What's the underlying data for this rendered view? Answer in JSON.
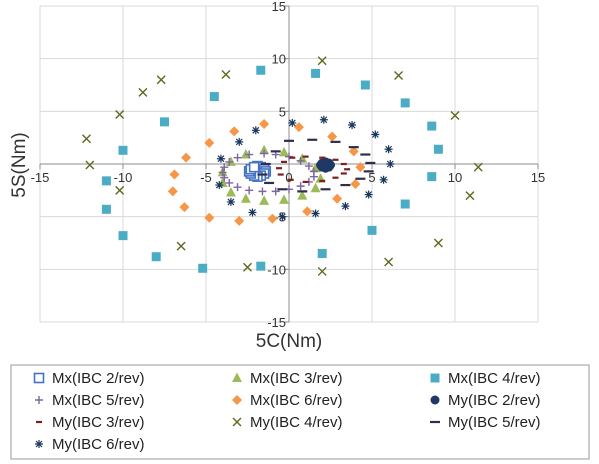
{
  "chart_data": {
    "type": "scatter",
    "title": "",
    "xlabel": "5C(Nm)",
    "ylabel": "5S(Nm)",
    "xlim": [
      -15,
      15
    ],
    "ylim": [
      -15,
      15
    ],
    "xticks": [
      -15,
      -10,
      -5,
      0,
      5,
      10,
      15
    ],
    "yticks": [
      -15,
      -10,
      -5,
      0,
      5,
      10,
      15
    ],
    "xtick_labels": [
      "-15",
      "-10",
      "-5",
      "0",
      "5",
      "10",
      "15"
    ],
    "ytick_labels": [
      "-15",
      "-10",
      "-5",
      "0",
      "5",
      "10",
      "15"
    ],
    "grid": true,
    "legend_position": "bottom",
    "series": [
      {
        "name": "Mx(IBC 2/rev)",
        "marker": "open-square",
        "color": "#4472C4",
        "x": [
          -1.9,
          -1.7,
          -1.5,
          -1.4,
          -1.5,
          -1.7,
          -1.9,
          -2.1,
          -2.3,
          -2.4,
          -2.3,
          -2.1
        ],
        "y": [
          -0.2,
          -0.3,
          -0.5,
          -0.7,
          -0.9,
          -1.1,
          -1.2,
          -1.1,
          -0.9,
          -0.7,
          -0.5,
          -0.3
        ]
      },
      {
        "name": "Mx(IBC 3/rev)",
        "marker": "triangle",
        "color": "#9BBB59",
        "x": [
          -1.5,
          -0.3,
          0.8,
          1.6,
          1.9,
          1.6,
          0.8,
          -0.3,
          -1.5,
          -2.6,
          -3.5,
          -4.0,
          -4.0,
          -3.5,
          -2.6
        ],
        "y": [
          1.3,
          1.1,
          0.5,
          -0.4,
          -1.4,
          -2.3,
          -3.0,
          -3.4,
          -3.5,
          -3.3,
          -2.7,
          -1.8,
          -0.8,
          0.2,
          0.9
        ]
      },
      {
        "name": "Mx(IBC 4/rev)",
        "marker": "square",
        "color": "#4BACC6",
        "x": [
          -1.7,
          1.6,
          4.6,
          7.0,
          8.6,
          9.0,
          8.6,
          7.0,
          5.0,
          2.0,
          -1.7,
          -5.2,
          -8.0,
          -10.0,
          -11.0,
          -11.0,
          -10.0,
          -7.5,
          -4.5
        ],
        "y": [
          8.9,
          8.6,
          7.5,
          5.8,
          3.6,
          1.4,
          -1.2,
          -3.8,
          -6.3,
          -8.5,
          -9.7,
          -9.9,
          -8.8,
          -6.8,
          -4.3,
          -1.6,
          1.3,
          4.0,
          6.4
        ]
      },
      {
        "name": "Mx(IBC 5/rev)",
        "marker": "plus",
        "color": "#8064A2",
        "x": [
          -1.5,
          -0.8,
          0.0,
          0.7,
          1.2,
          1.5,
          1.5,
          1.2,
          0.7,
          0.0,
          -0.8,
          -1.6,
          -2.4,
          -3.1,
          -3.6,
          -3.9,
          -4.0,
          -3.9,
          -3.6,
          -3.1,
          -2.4
        ],
        "y": [
          1.0,
          0.9,
          0.7,
          0.3,
          -0.2,
          -0.7,
          -1.2,
          -1.7,
          -2.1,
          -2.4,
          -2.6,
          -2.6,
          -2.5,
          -2.2,
          -1.8,
          -1.3,
          -0.8,
          -0.3,
          0.2,
          0.6,
          0.9
        ]
      },
      {
        "name": "Mx(IBC 6/rev)",
        "marker": "diamond",
        "color": "#F79646",
        "x": [
          -1.5,
          0.6,
          2.6,
          3.9,
          4.3,
          4.0,
          2.9,
          1.1,
          -1.0,
          -3.0,
          -4.8,
          -6.3,
          -7.0,
          -6.9,
          -6.2,
          -4.8,
          -3.3
        ],
        "y": [
          3.8,
          3.5,
          2.6,
          1.2,
          -0.3,
          -1.9,
          -3.3,
          -4.5,
          -5.2,
          -5.4,
          -5.1,
          -4.1,
          -2.6,
          -1.0,
          0.6,
          2.0,
          3.1
        ]
      },
      {
        "name": "My(IBC 2/rev)",
        "marker": "circle",
        "color": "#1F3864",
        "x": [
          2.2,
          2.4,
          2.5,
          2.4,
          2.2,
          2.0,
          1.9,
          2.0
        ],
        "y": [
          0.2,
          0.1,
          -0.1,
          -0.3,
          -0.4,
          -0.3,
          -0.1,
          0.1
        ]
      },
      {
        "name": "My(IBC 3/rev)",
        "marker": "dash",
        "color": "#7B1F1F",
        "x": [
          1.0,
          2.0,
          2.8,
          3.3,
          3.5,
          3.3,
          2.8,
          2.0,
          1.0,
          0.1,
          -0.5,
          -0.6,
          -0.3,
          0.2
        ],
        "y": [
          0.7,
          0.6,
          0.4,
          0.0,
          -0.5,
          -0.9,
          -1.3,
          -1.6,
          -1.7,
          -1.5,
          -1.0,
          -0.4,
          0.2,
          0.6
        ]
      },
      {
        "name": "My(IBC 4/rev)",
        "marker": "x",
        "color": "#5A6B1E",
        "x": [
          -3.8,
          2.0,
          6.6,
          10.0,
          11.4,
          10.9,
          9.0,
          6.0,
          2.0,
          -2.5,
          -6.5,
          -10.2,
          -12.0,
          -12.2,
          -10.2,
          -8.8,
          -7.7
        ],
        "y": [
          8.5,
          9.8,
          8.4,
          4.6,
          -0.3,
          -3.0,
          -7.5,
          -9.3,
          -10.2,
          -9.8,
          -7.8,
          -2.5,
          -0.1,
          2.4,
          4.7,
          6.8,
          8.0
        ]
      },
      {
        "name": "My(IBC 5/rev)",
        "marker": "longdash",
        "color": "#2E2E4F",
        "x": [
          0.0,
          1.4,
          2.8,
          3.9,
          4.6,
          4.9,
          4.8,
          4.3,
          3.4,
          2.2,
          0.8,
          -0.4,
          -1.2,
          -1.6,
          -1.4,
          -0.8
        ],
        "y": [
          2.2,
          2.3,
          2.1,
          1.6,
          0.9,
          0.1,
          -0.7,
          -1.4,
          -2.0,
          -2.4,
          -2.6,
          -2.4,
          -1.8,
          -1.0,
          0.0,
          1.2
        ]
      },
      {
        "name": "My(IBC 6/rev)",
        "marker": "star",
        "color": "#17365D",
        "x": [
          -2.0,
          0.2,
          2.1,
          3.8,
          5.2,
          6.0,
          6.1,
          5.7,
          4.8,
          3.4,
          1.6,
          -0.4,
          -2.2,
          -3.5,
          -4.2,
          -4.1,
          -3.0
        ],
        "y": [
          3.2,
          3.9,
          4.2,
          3.7,
          2.8,
          1.4,
          0.0,
          -1.5,
          -2.9,
          -4.0,
          -4.7,
          -5.0,
          -4.6,
          -3.6,
          -2.0,
          0.5,
          2.1
        ]
      }
    ]
  }
}
